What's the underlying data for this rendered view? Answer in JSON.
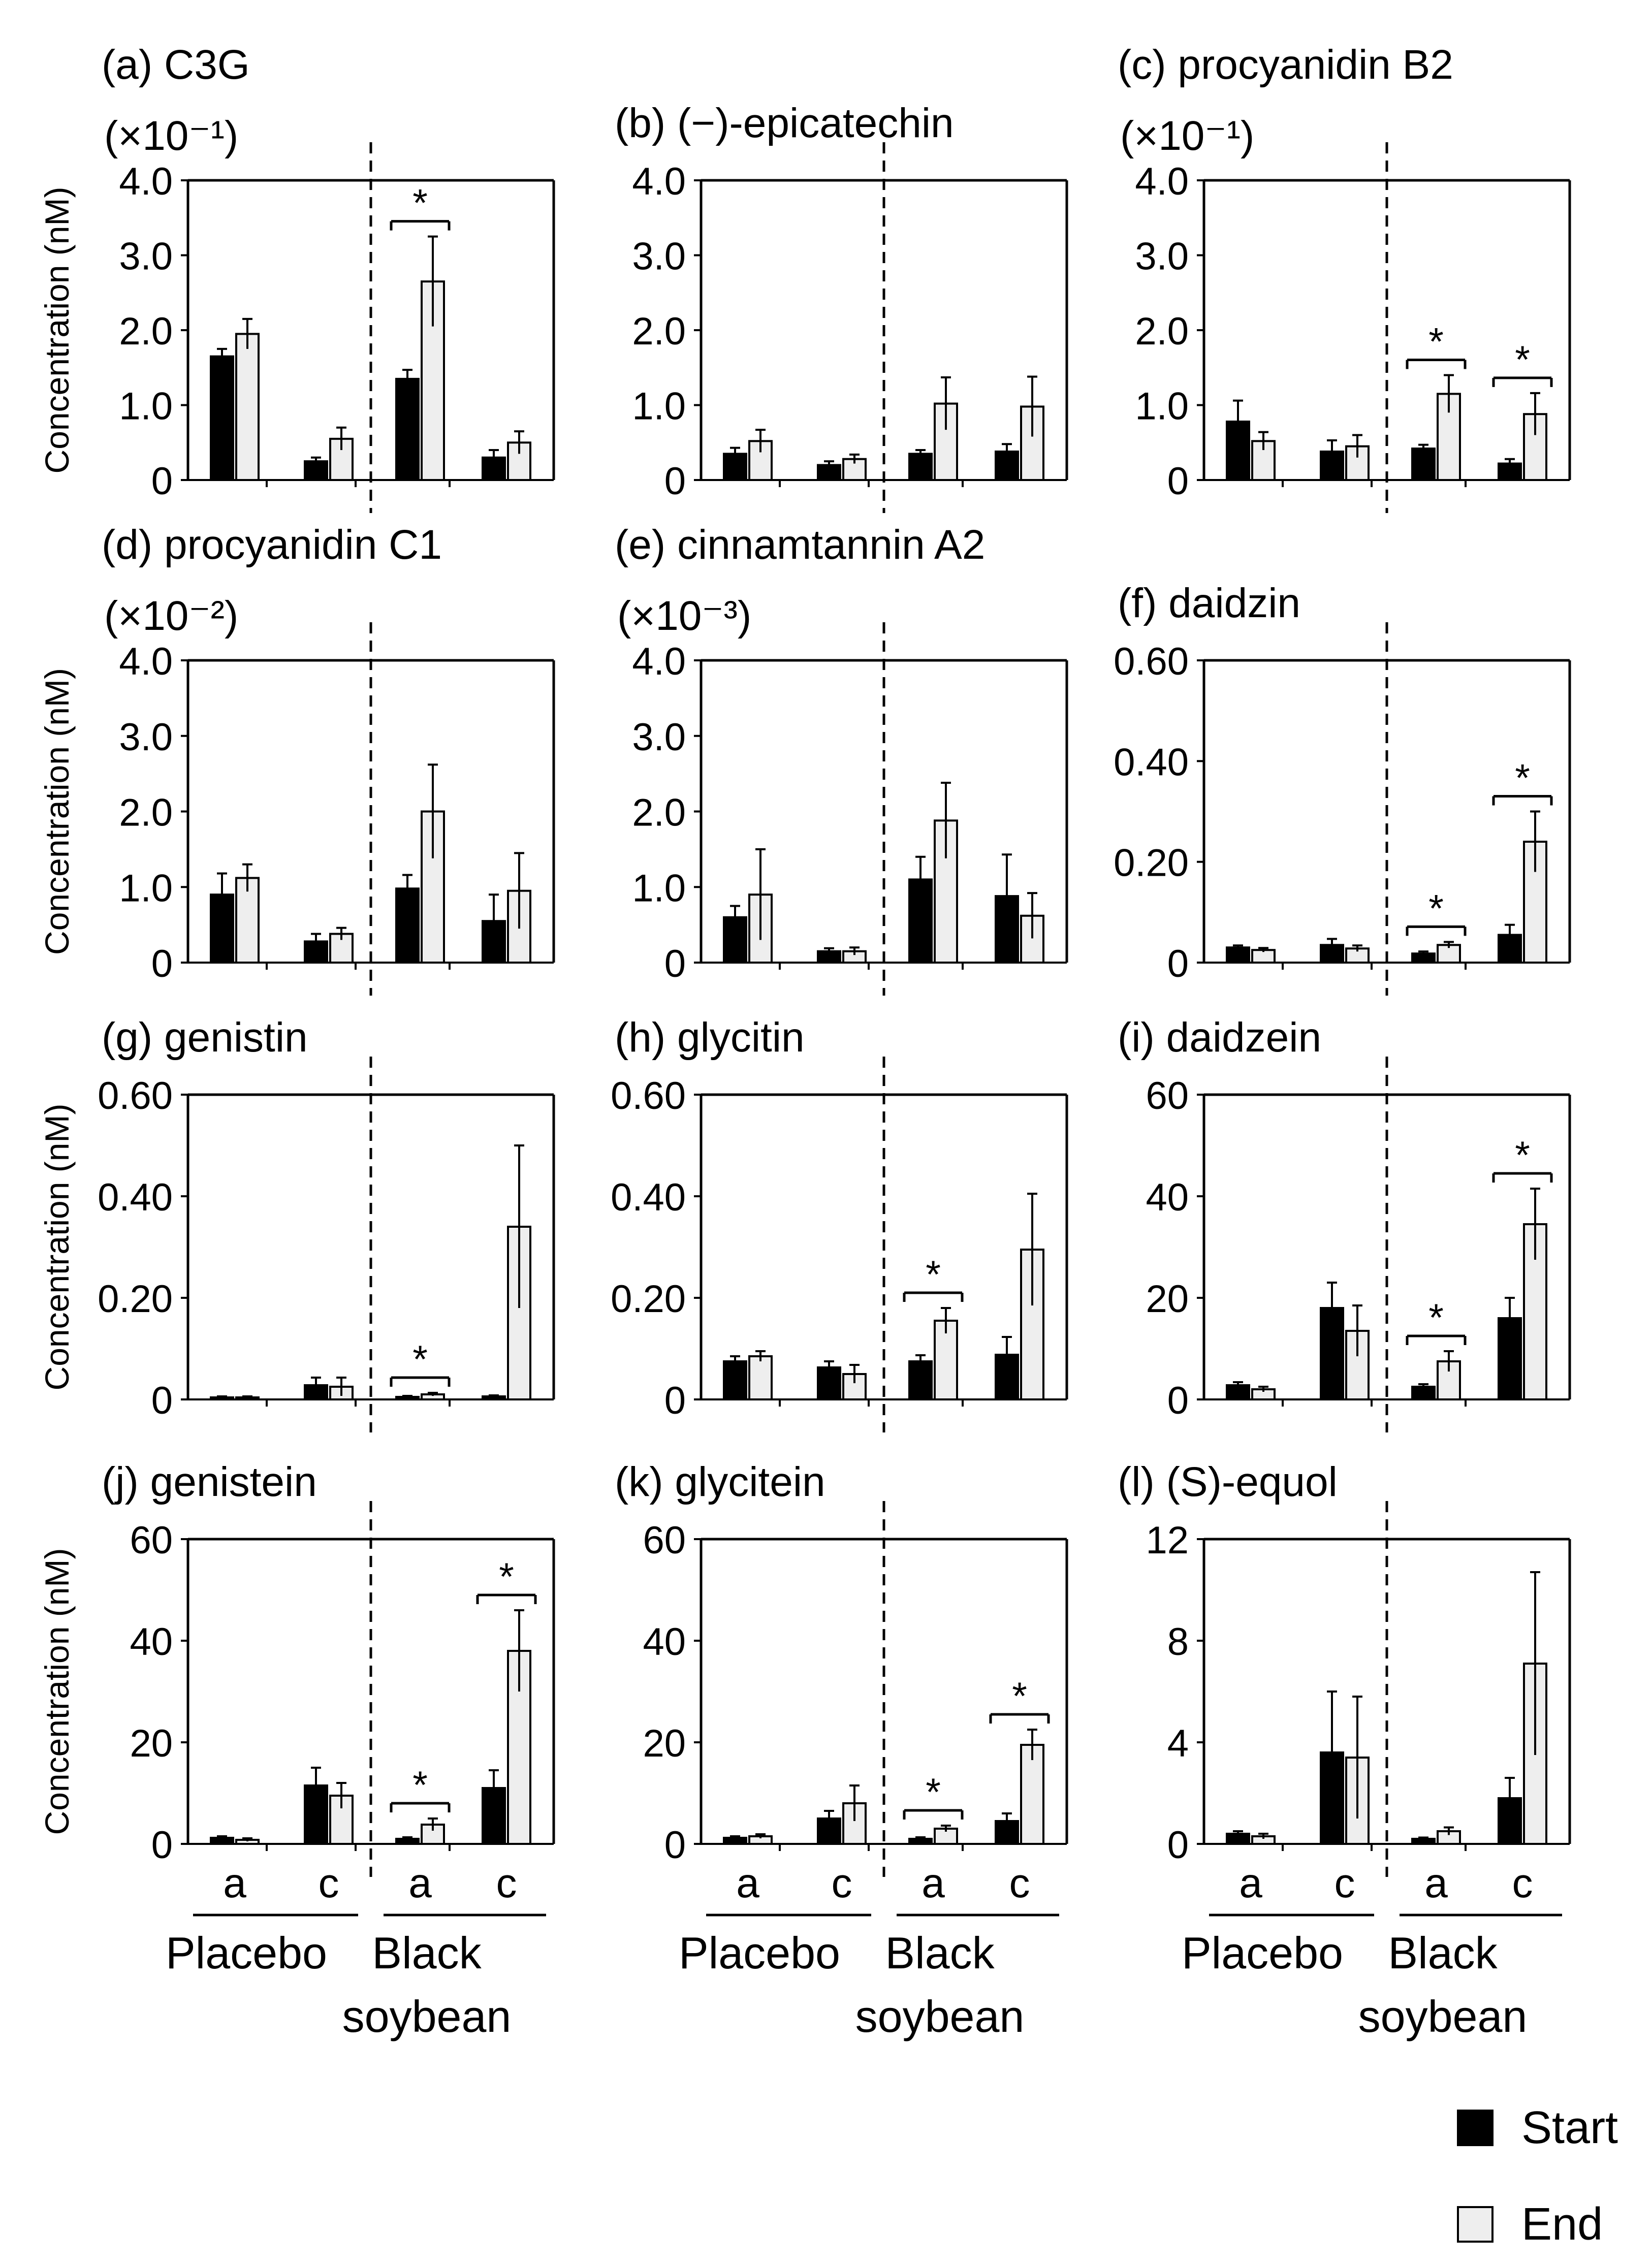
{
  "figure": {
    "group_labels": [
      "Placebo",
      "Black soybean"
    ],
    "subgroup_labels": [
      "a",
      "c"
    ],
    "legend": [
      {
        "label": "Start",
        "color": "#000000"
      },
      {
        "label": "End",
        "color": "#eeeeee"
      }
    ],
    "ylabel": "Concentration (nM)",
    "significance_mark": "*"
  },
  "chart_data": [
    {
      "type": "bar",
      "panel": "(a)",
      "title": "(a) C3G",
      "multiplier": "(×10⁻¹)",
      "ylim": [
        0,
        4.0
      ],
      "ticks": [
        "0",
        "1.0",
        "2.0",
        "3.0",
        "4.0"
      ],
      "categories": [
        "Placebo a",
        "Placebo c",
        "Black soybean a",
        "Black soybean c"
      ],
      "series": [
        {
          "name": "Start",
          "values": [
            1.65,
            0.25,
            1.35,
            0.3
          ],
          "errors": [
            0.1,
            0.05,
            0.12,
            0.1
          ]
        },
        {
          "name": "End",
          "values": [
            1.95,
            0.55,
            2.65,
            0.5
          ],
          "errors": [
            0.2,
            0.15,
            0.6,
            0.15
          ]
        }
      ],
      "significant": [
        2
      ]
    },
    {
      "type": "bar",
      "panel": "(b)",
      "title": "(b) (−)-epicatechin",
      "multiplier": "",
      "ylim": [
        0,
        4.0
      ],
      "ticks": [
        "0",
        "1.0",
        "2.0",
        "3.0",
        "4.0"
      ],
      "categories": [
        "Placebo a",
        "Placebo c",
        "Black soybean a",
        "Black soybean c"
      ],
      "series": [
        {
          "name": "Start",
          "values": [
            0.35,
            0.2,
            0.35,
            0.38
          ],
          "errors": [
            0.08,
            0.05,
            0.05,
            0.1
          ]
        },
        {
          "name": "End",
          "values": [
            0.52,
            0.28,
            1.02,
            0.98
          ],
          "errors": [
            0.15,
            0.06,
            0.35,
            0.4
          ]
        }
      ],
      "significant": []
    },
    {
      "type": "bar",
      "panel": "(c)",
      "title": "(c) procyanidin B2",
      "multiplier": "(×10⁻¹)",
      "ylim": [
        0,
        4.0
      ],
      "ticks": [
        "0",
        "1.0",
        "2.0",
        "3.0",
        "4.0"
      ],
      "categories": [
        "Placebo a",
        "Placebo c",
        "Black soybean a",
        "Black soybean c"
      ],
      "series": [
        {
          "name": "Start",
          "values": [
            0.78,
            0.38,
            0.42,
            0.22
          ],
          "errors": [
            0.28,
            0.15,
            0.05,
            0.06
          ]
        },
        {
          "name": "End",
          "values": [
            0.52,
            0.45,
            1.15,
            0.88
          ],
          "errors": [
            0.12,
            0.15,
            0.25,
            0.28
          ]
        }
      ],
      "significant": [
        2,
        3
      ]
    },
    {
      "type": "bar",
      "panel": "(d)",
      "title": "(d) procyanidin C1",
      "multiplier": "(×10⁻²)",
      "ylim": [
        0,
        4.0
      ],
      "ticks": [
        "0",
        "1.0",
        "2.0",
        "3.0",
        "4.0"
      ],
      "categories": [
        "Placebo a",
        "Placebo c",
        "Black soybean a",
        "Black soybean c"
      ],
      "series": [
        {
          "name": "Start",
          "values": [
            0.9,
            0.28,
            0.98,
            0.55
          ],
          "errors": [
            0.28,
            0.1,
            0.18,
            0.35
          ]
        },
        {
          "name": "End",
          "values": [
            1.12,
            0.38,
            2.0,
            0.95
          ],
          "errors": [
            0.18,
            0.08,
            0.62,
            0.5
          ]
        }
      ],
      "significant": []
    },
    {
      "type": "bar",
      "panel": "(e)",
      "title": "(e) cinnamtannin A2",
      "multiplier": "(×10⁻³)",
      "ylim": [
        0,
        4.0
      ],
      "ticks": [
        "0",
        "1.0",
        "2.0",
        "3.0",
        "4.0"
      ],
      "categories": [
        "Placebo a",
        "Placebo c",
        "Black soybean a",
        "Black soybean c"
      ],
      "series": [
        {
          "name": "Start",
          "values": [
            0.6,
            0.15,
            1.1,
            0.88
          ],
          "errors": [
            0.15,
            0.04,
            0.3,
            0.55
          ]
        },
        {
          "name": "End",
          "values": [
            0.9,
            0.15,
            1.88,
            0.62
          ],
          "errors": [
            0.6,
            0.05,
            0.5,
            0.3
          ]
        }
      ],
      "significant": []
    },
    {
      "type": "bar",
      "panel": "(f)",
      "title": "(f) daidzin",
      "multiplier": "",
      "ylim": [
        0,
        0.6
      ],
      "ticks": [
        "0",
        "0.20",
        "0.40",
        "0.60"
      ],
      "categories": [
        "Placebo a",
        "Placebo c",
        "Black soybean a",
        "Black soybean c"
      ],
      "series": [
        {
          "name": "Start",
          "values": [
            0.03,
            0.035,
            0.018,
            0.055
          ],
          "errors": [
            0.004,
            0.012,
            0.004,
            0.02
          ]
        },
        {
          "name": "End",
          "values": [
            0.025,
            0.028,
            0.035,
            0.24
          ],
          "errors": [
            0.004,
            0.006,
            0.006,
            0.06
          ]
        }
      ],
      "significant": [
        2,
        3
      ]
    },
    {
      "type": "bar",
      "panel": "(g)",
      "title": "(g) genistin",
      "multiplier": "",
      "ylim": [
        0,
        0.6
      ],
      "ticks": [
        "0",
        "0.20",
        "0.40",
        "0.60"
      ],
      "categories": [
        "Placebo a",
        "Placebo c",
        "Black soybean a",
        "Black soybean c"
      ],
      "series": [
        {
          "name": "Start",
          "values": [
            0.004,
            0.028,
            0.005,
            0.006
          ],
          "errors": [
            0.002,
            0.015,
            0.002,
            0.002
          ]
        },
        {
          "name": "End",
          "values": [
            0.004,
            0.025,
            0.01,
            0.34
          ],
          "errors": [
            0.002,
            0.018,
            0.003,
            0.16
          ]
        }
      ],
      "significant": [
        2
      ]
    },
    {
      "type": "bar",
      "panel": "(h)",
      "title": "(h) glycitin",
      "multiplier": "",
      "ylim": [
        0,
        0.6
      ],
      "ticks": [
        "0",
        "0.20",
        "0.40",
        "0.60"
      ],
      "categories": [
        "Placebo a",
        "Placebo c",
        "Black soybean a",
        "Black soybean c"
      ],
      "series": [
        {
          "name": "Start",
          "values": [
            0.075,
            0.063,
            0.075,
            0.088
          ],
          "errors": [
            0.01,
            0.012,
            0.012,
            0.035
          ]
        },
        {
          "name": "End",
          "values": [
            0.085,
            0.05,
            0.155,
            0.295
          ],
          "errors": [
            0.01,
            0.018,
            0.025,
            0.11
          ]
        }
      ],
      "significant": [
        2
      ]
    },
    {
      "type": "bar",
      "panel": "(i)",
      "title": "(i) daidzein",
      "multiplier": "",
      "ylim": [
        0,
        60
      ],
      "ticks": [
        "0",
        "20",
        "40",
        "60"
      ],
      "categories": [
        "Placebo a",
        "Placebo c",
        "Black soybean a",
        "Black soybean c"
      ],
      "series": [
        {
          "name": "Start",
          "values": [
            2.8,
            18.0,
            2.5,
            16.0
          ],
          "errors": [
            0.6,
            5.0,
            0.5,
            4.0
          ]
        },
        {
          "name": "End",
          "values": [
            2.0,
            13.5,
            7.5,
            34.5
          ],
          "errors": [
            0.5,
            5.0,
            2.0,
            7.0
          ]
        }
      ],
      "significant": [
        2,
        3
      ]
    },
    {
      "type": "bar",
      "panel": "(j)",
      "title": "(j) genistein",
      "multiplier": "",
      "ylim": [
        0,
        60
      ],
      "ticks": [
        "0",
        "20",
        "40",
        "60"
      ],
      "categories": [
        "Placebo a",
        "Placebo c",
        "Black soybean a",
        "Black soybean c"
      ],
      "series": [
        {
          "name": "Start",
          "values": [
            1.2,
            11.5,
            1.0,
            11.0
          ],
          "errors": [
            0.3,
            3.5,
            0.3,
            3.5
          ]
        },
        {
          "name": "End",
          "values": [
            0.8,
            9.5,
            3.8,
            38.0
          ],
          "errors": [
            0.3,
            2.5,
            1.2,
            8.0
          ]
        }
      ],
      "significant": [
        2,
        3
      ]
    },
    {
      "type": "bar",
      "panel": "(k)",
      "title": "(k) glycitein",
      "multiplier": "",
      "ylim": [
        0,
        60
      ],
      "ticks": [
        "0",
        "20",
        "40",
        "60"
      ],
      "categories": [
        "Placebo a",
        "Placebo c",
        "Black soybean a",
        "Black soybean c"
      ],
      "series": [
        {
          "name": "Start",
          "values": [
            1.2,
            5.0,
            1.0,
            4.5
          ],
          "errors": [
            0.3,
            1.5,
            0.3,
            1.5
          ]
        },
        {
          "name": "End",
          "values": [
            1.5,
            8.0,
            3.0,
            19.5
          ],
          "errors": [
            0.4,
            3.5,
            0.6,
            3.0
          ]
        }
      ],
      "significant": [
        2,
        3
      ]
    },
    {
      "type": "bar",
      "panel": "(l)",
      "title": "(l) (S)-equol",
      "multiplier": "",
      "ylim": [
        0,
        12
      ],
      "ticks": [
        "0",
        "4",
        "8",
        "12"
      ],
      "categories": [
        "Placebo a",
        "Placebo c",
        "Black soybean a",
        "Black soybean c"
      ],
      "series": [
        {
          "name": "Start",
          "values": [
            0.4,
            3.6,
            0.2,
            1.8
          ],
          "errors": [
            0.1,
            2.4,
            0.05,
            0.8
          ]
        },
        {
          "name": "End",
          "values": [
            0.3,
            3.4,
            0.5,
            7.1
          ],
          "errors": [
            0.1,
            2.4,
            0.15,
            3.6
          ]
        }
      ],
      "significant": []
    }
  ]
}
